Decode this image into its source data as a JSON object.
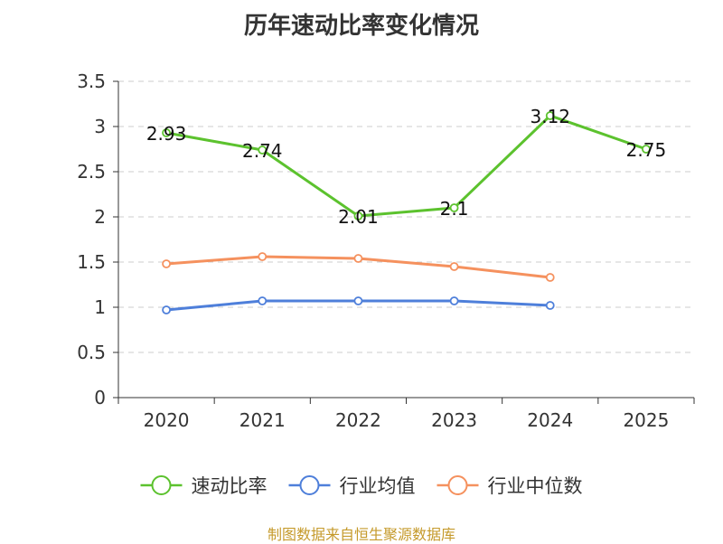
{
  "chart_data": {
    "type": "line",
    "title": "历年速动比率变化情况",
    "categories": [
      "2020",
      "2021",
      "2022",
      "2023",
      "2024",
      "2025"
    ],
    "ylim": [
      0,
      3.5
    ],
    "yticks": [
      "0",
      "0.5",
      "1",
      "1.5",
      "2",
      "2.5",
      "3",
      "3.5"
    ],
    "grid": true,
    "legend_position": "bottom",
    "xlabel": "",
    "ylabel": "",
    "series": [
      {
        "name": "速动比率",
        "color": "#5cc22e",
        "values": [
          2.93,
          2.74,
          2.01,
          2.1,
          3.12,
          2.75
        ],
        "labels": [
          "2.93",
          "2.74",
          "2.01",
          "2.1",
          "3.12",
          "2.75"
        ]
      },
      {
        "name": "行业均值",
        "color": "#4e7fda",
        "values": [
          0.97,
          1.07,
          1.07,
          1.07,
          1.02,
          null
        ]
      },
      {
        "name": "行业中位数",
        "color": "#f5915e",
        "values": [
          1.48,
          1.56,
          1.54,
          1.45,
          1.33,
          null
        ]
      }
    ]
  },
  "footer": "制图数据来自恒生聚源数据库"
}
